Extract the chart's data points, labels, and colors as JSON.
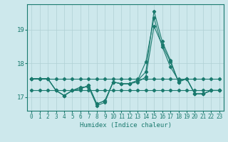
{
  "title": "",
  "xlabel": "Humidex (Indice chaleur)",
  "ylabel": "",
  "bg_color": "#cde8ec",
  "grid_color": "#b0d0d4",
  "line_color": "#1a7a6e",
  "x": [
    0,
    1,
    2,
    3,
    4,
    5,
    6,
    7,
    8,
    9,
    10,
    11,
    12,
    13,
    14,
    15,
    16,
    17,
    18,
    19,
    20,
    21,
    22,
    23
  ],
  "series_main": [
    17.55,
    17.55,
    17.55,
    17.2,
    17.05,
    17.2,
    17.25,
    17.35,
    16.8,
    16.9,
    17.45,
    17.4,
    17.4,
    17.5,
    17.75,
    19.55,
    18.65,
    18.1,
    17.45,
    17.55,
    17.1,
    17.1,
    17.2,
    17.2
  ],
  "series2": [
    17.55,
    17.55,
    17.55,
    17.2,
    17.05,
    17.2,
    17.25,
    17.35,
    16.8,
    16.9,
    17.45,
    17.4,
    17.4,
    17.5,
    18.05,
    19.35,
    18.5,
    17.9,
    17.5,
    17.55,
    17.1,
    17.1,
    17.2,
    17.2
  ],
  "series3": [
    17.55,
    17.55,
    17.55,
    17.2,
    17.05,
    17.2,
    17.3,
    17.3,
    16.75,
    16.85,
    17.45,
    17.4,
    17.4,
    17.45,
    17.6,
    19.1,
    18.55,
    18.05,
    17.45,
    17.55,
    17.1,
    17.1,
    17.2,
    17.2
  ],
  "series_flat1": [
    17.55,
    17.55,
    17.55,
    17.55,
    17.55,
    17.55,
    17.55,
    17.55,
    17.55,
    17.55,
    17.55,
    17.55,
    17.55,
    17.55,
    17.55,
    17.55,
    17.55,
    17.55,
    17.55,
    17.55,
    17.55,
    17.55,
    17.55,
    17.55
  ],
  "series_flat2": [
    17.2,
    17.2,
    17.2,
    17.2,
    17.2,
    17.2,
    17.2,
    17.2,
    17.2,
    17.2,
    17.2,
    17.2,
    17.2,
    17.2,
    17.2,
    17.2,
    17.2,
    17.2,
    17.2,
    17.2,
    17.2,
    17.2,
    17.2,
    17.2
  ],
  "ylim": [
    16.6,
    19.75
  ],
  "yticks": [
    17,
    18,
    19
  ],
  "xlim": [
    -0.5,
    23.5
  ]
}
